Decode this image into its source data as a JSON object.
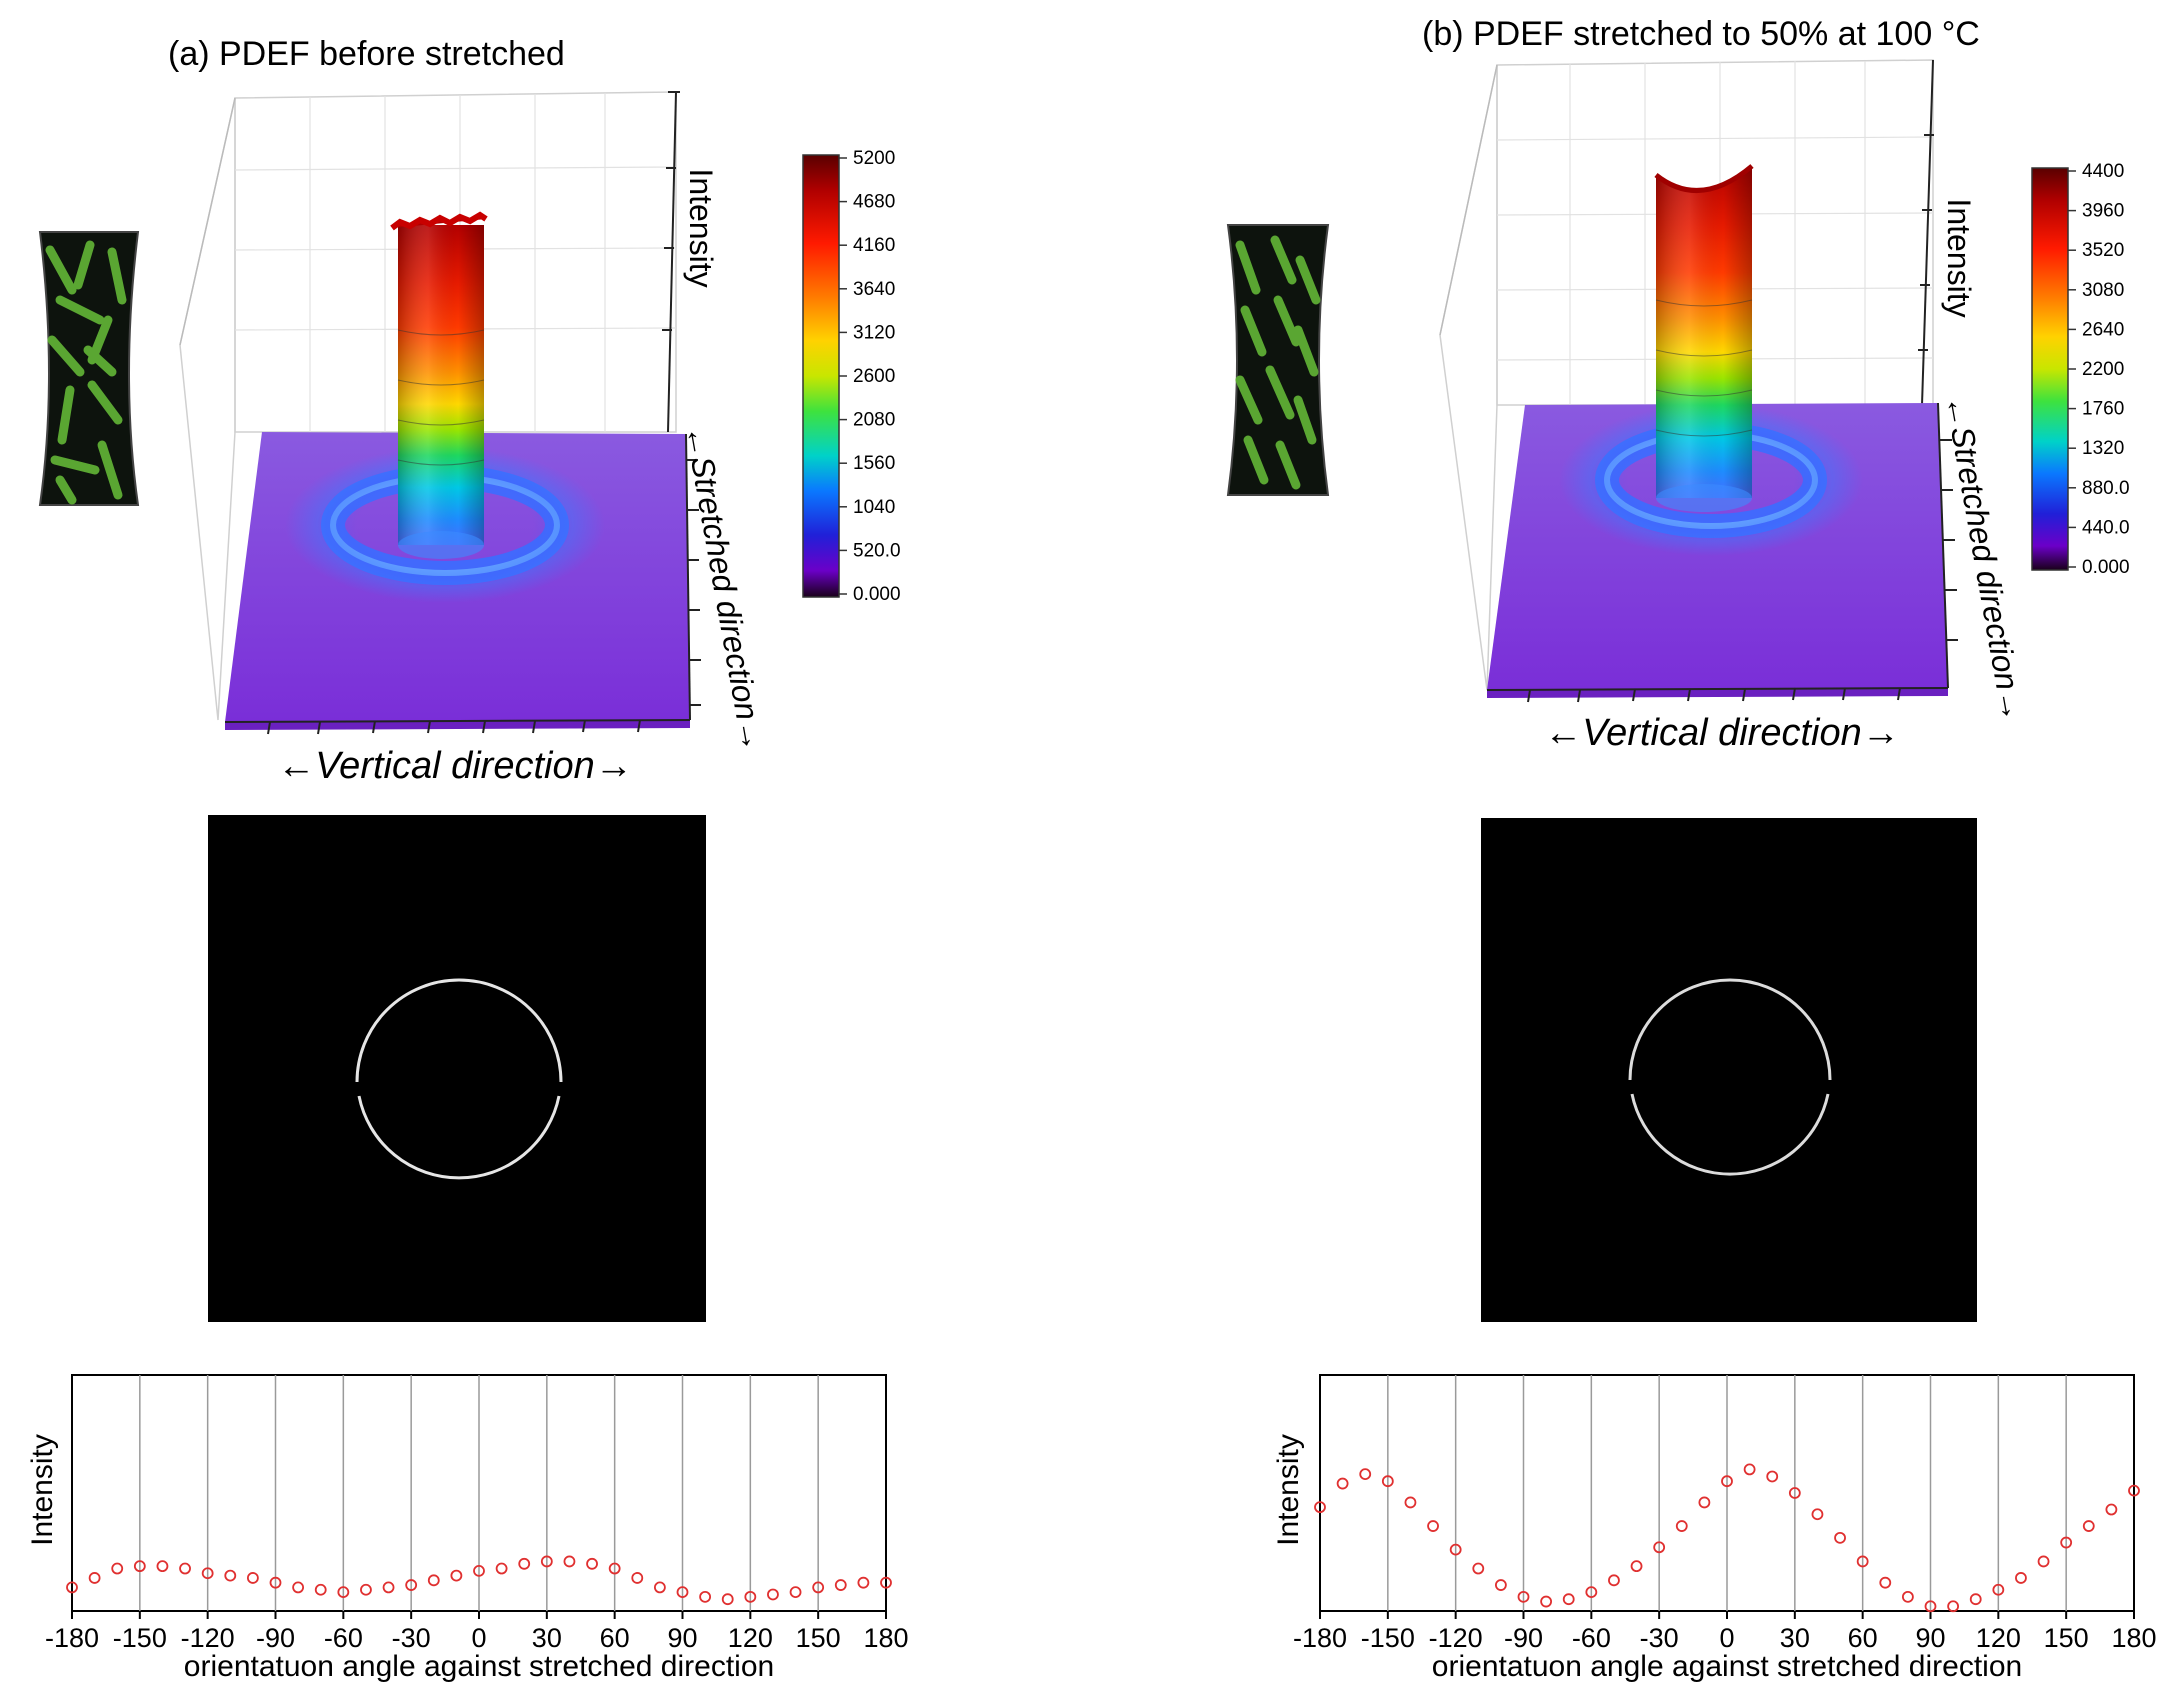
{
  "panels": [
    {
      "title": "(a) PDEF before stretched",
      "surface": {
        "z_axis_label": "Intensity",
        "x_axis_label": "←Vertical direction→",
        "y_axis_label": "←Stretched direction→",
        "colorbar_ticks": [
          "5200",
          "4680",
          "4160",
          "3640",
          "3120",
          "2600",
          "2080",
          "1560",
          "1040",
          "520.0",
          "0.000"
        ]
      },
      "profile": {
        "ylabel": "Intensity",
        "xlabel": "orientatuon angle against stretched direction"
      }
    },
    {
      "title": "(b) PDEF stretched to 50% at 100 °C",
      "surface": {
        "z_axis_label": "Intensity",
        "x_axis_label": "←Vertical direction→",
        "y_axis_label": "←Stretched direction→",
        "colorbar_ticks": [
          "4400",
          "3960",
          "3520",
          "3080",
          "2640",
          "2200",
          "1760",
          "1320",
          "880.0",
          "440.0",
          "0.000"
        ]
      },
      "profile": {
        "ylabel": "Intensity",
        "xlabel": "orientatuon angle against stretched direction"
      }
    }
  ],
  "chart_data": [
    {
      "type": "scatter",
      "title": "(a) PDEF before stretched",
      "xlabel": "orientatuon angle against stretched direction",
      "ylabel": "Intensity",
      "xlim": [
        -180,
        180
      ],
      "ylim": [
        0,
        1
      ],
      "xticks": [
        "-180",
        "-150",
        "-120",
        "-90",
        "-60",
        "-30",
        "0",
        "30",
        "60",
        "90",
        "120",
        "150",
        "180"
      ],
      "x": [
        -180,
        -170,
        -160,
        -150,
        -140,
        -130,
        -120,
        -110,
        -100,
        -90,
        -80,
        -70,
        -60,
        -50,
        -40,
        -30,
        -20,
        -10,
        0,
        10,
        20,
        30,
        40,
        50,
        60,
        70,
        80,
        90,
        100,
        110,
        120,
        130,
        140,
        150,
        160,
        170,
        180
      ],
      "y": [
        0.1,
        0.14,
        0.18,
        0.19,
        0.19,
        0.18,
        0.16,
        0.15,
        0.14,
        0.12,
        0.1,
        0.09,
        0.08,
        0.09,
        0.1,
        0.11,
        0.13,
        0.15,
        0.17,
        0.18,
        0.2,
        0.21,
        0.21,
        0.2,
        0.18,
        0.14,
        0.1,
        0.08,
        0.06,
        0.05,
        0.06,
        0.07,
        0.08,
        0.1,
        0.11,
        0.12,
        0.12
      ]
    },
    {
      "type": "scatter",
      "title": "(b) PDEF stretched to 50% at 100 °C",
      "xlabel": "orientatuon angle against stretched direction",
      "ylabel": "Intensity",
      "xlim": [
        -180,
        180
      ],
      "ylim": [
        0,
        1
      ],
      "xticks": [
        "-180",
        "-150",
        "-120",
        "-90",
        "-60",
        "-30",
        "0",
        "30",
        "60",
        "90",
        "120",
        "150",
        "180"
      ],
      "x": [
        -180,
        -170,
        -160,
        -150,
        -140,
        -130,
        -120,
        -110,
        -100,
        -90,
        -80,
        -70,
        -60,
        -50,
        -40,
        -30,
        -20,
        -10,
        0,
        10,
        20,
        30,
        40,
        50,
        60,
        70,
        80,
        90,
        100,
        110,
        120,
        130,
        140,
        150,
        160,
        170,
        180
      ],
      "y": [
        0.44,
        0.54,
        0.58,
        0.55,
        0.46,
        0.36,
        0.26,
        0.18,
        0.11,
        0.06,
        0.04,
        0.05,
        0.08,
        0.13,
        0.19,
        0.27,
        0.36,
        0.46,
        0.55,
        0.6,
        0.57,
        0.5,
        0.41,
        0.31,
        0.21,
        0.12,
        0.06,
        0.02,
        0.02,
        0.05,
        0.09,
        0.14,
        0.21,
        0.29,
        0.36,
        0.43,
        0.51
      ]
    }
  ]
}
